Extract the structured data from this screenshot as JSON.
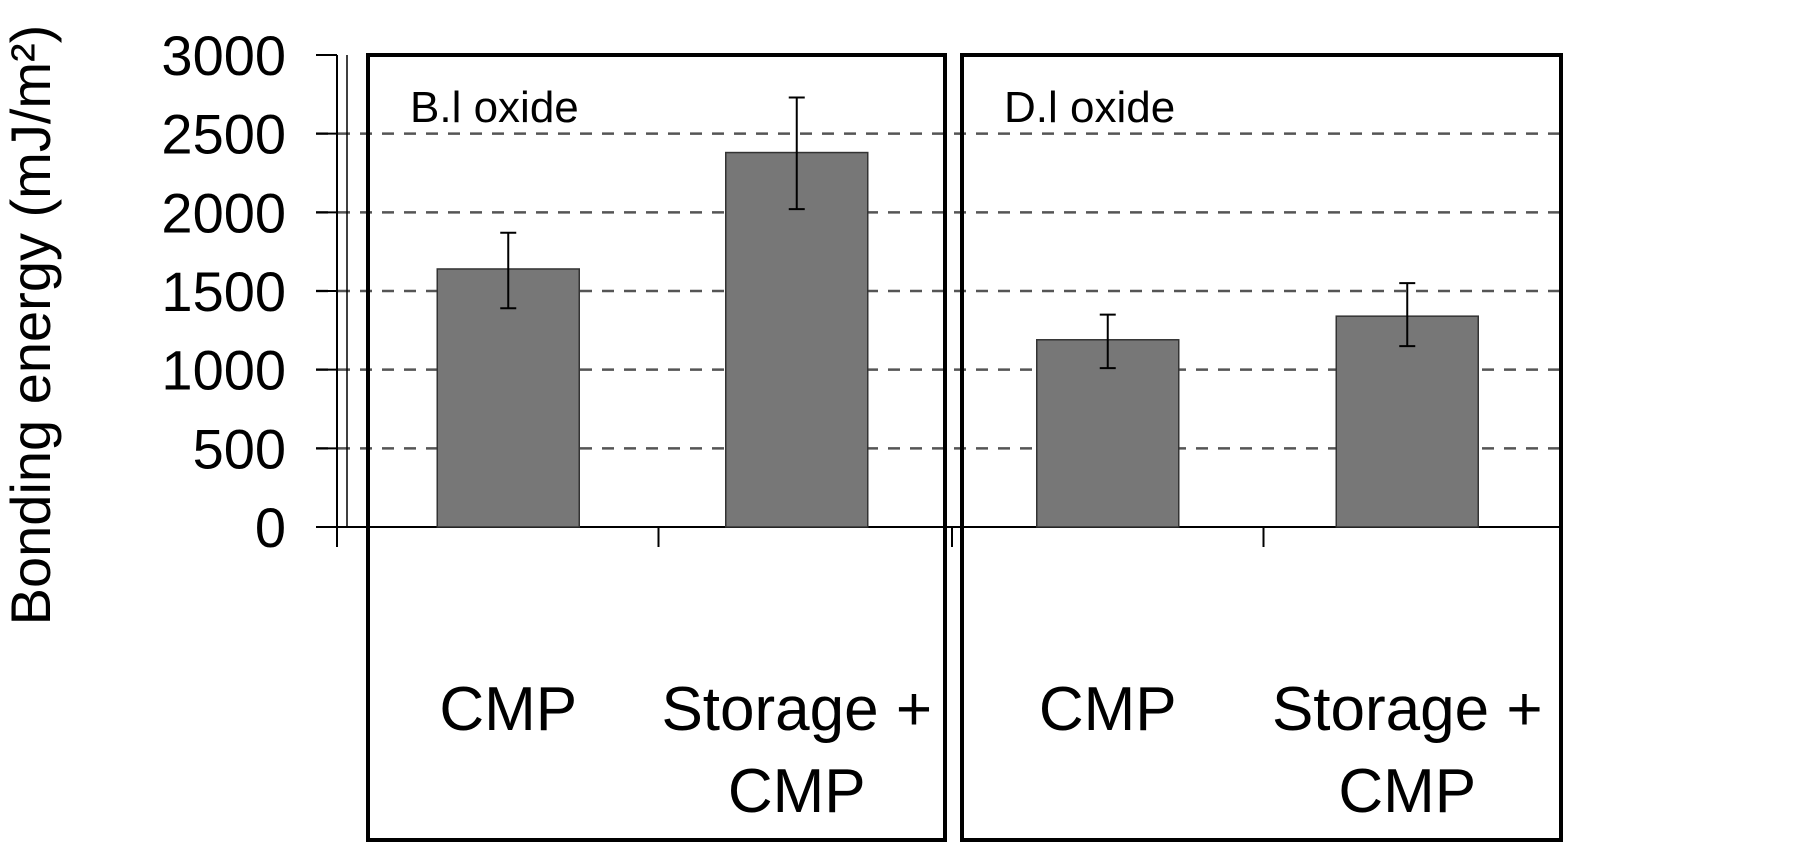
{
  "chart_data": {
    "type": "bar",
    "ylabel": "Bonding energy (mJ/m²)",
    "ylim": [
      0,
      3000
    ],
    "yticks": [
      "0",
      "500",
      "1000",
      "1500",
      "2000",
      "2500",
      "3000"
    ],
    "grid": "horizontal dashed",
    "bar_color": "#777777",
    "panels": [
      {
        "label": "B.l oxide",
        "categories": [
          [
            "CMP"
          ],
          [
            "Storage +",
            "CMP"
          ]
        ],
        "values": [
          1640,
          2380
        ],
        "error_low": [
          1390,
          2020
        ],
        "error_high": [
          1870,
          2730
        ]
      },
      {
        "label": "D.l oxide",
        "categories": [
          [
            "CMP"
          ],
          [
            "Storage +",
            "CMP"
          ]
        ],
        "values": [
          1190,
          1340
        ],
        "error_low": [
          1010,
          1150
        ],
        "error_high": [
          1350,
          1550
        ]
      }
    ]
  }
}
